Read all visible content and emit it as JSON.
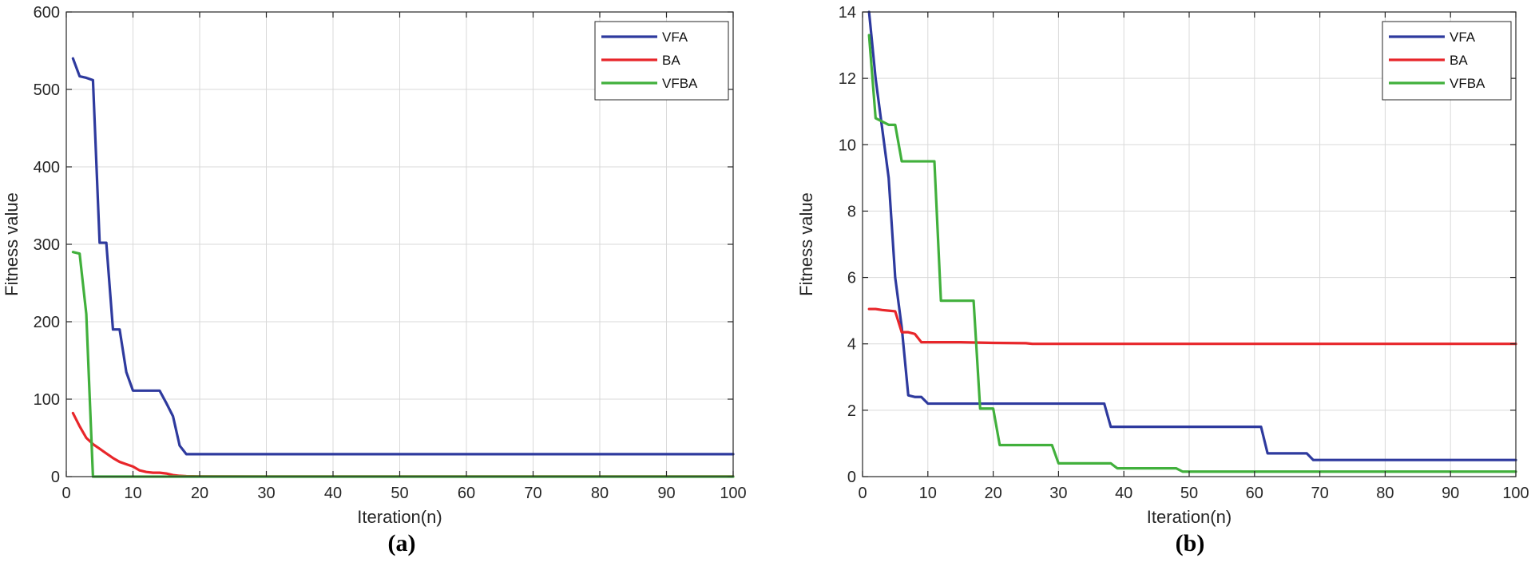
{
  "chart_data": [
    {
      "type": "line",
      "id": "a",
      "caption": "(a)",
      "xlabel": "Iteration(n)",
      "ylabel": "Fitness value",
      "xlim": [
        0,
        100
      ],
      "ylim": [
        0,
        600
      ],
      "xticks": [
        0,
        10,
        20,
        30,
        40,
        50,
        60,
        70,
        80,
        90,
        100
      ],
      "yticks": [
        0,
        100,
        200,
        300,
        400,
        500,
        600
      ],
      "grid": true,
      "legend": "top-right",
      "series": [
        {
          "name": "VFA",
          "color": "#2e3a9e",
          "points": [
            [
              1,
              540
            ],
            [
              2,
              517
            ],
            [
              3,
              515
            ],
            [
              4,
              512
            ],
            [
              5,
              302
            ],
            [
              6,
              302
            ],
            [
              7,
              190
            ],
            [
              8,
              190
            ],
            [
              9,
              135
            ],
            [
              10,
              111
            ],
            [
              11,
              111
            ],
            [
              12,
              111
            ],
            [
              13,
              111
            ],
            [
              14,
              111
            ],
            [
              15,
              95
            ],
            [
              16,
              78
            ],
            [
              17,
              40
            ],
            [
              18,
              29
            ],
            [
              20,
              29
            ],
            [
              30,
              29
            ],
            [
              40,
              29
            ],
            [
              50,
              29
            ],
            [
              60,
              29
            ],
            [
              70,
              29
            ],
            [
              80,
              29
            ],
            [
              90,
              29
            ],
            [
              100,
              29
            ]
          ]
        },
        {
          "name": "BA",
          "color": "#e8262a",
          "points": [
            [
              1,
              82
            ],
            [
              2,
              65
            ],
            [
              3,
              50
            ],
            [
              4,
              42
            ],
            [
              5,
              36
            ],
            [
              6,
              30
            ],
            [
              7,
              24
            ],
            [
              8,
              19
            ],
            [
              9,
              16
            ],
            [
              10,
              13
            ],
            [
              11,
              8
            ],
            [
              12,
              6
            ],
            [
              13,
              5
            ],
            [
              14,
              5
            ],
            [
              15,
              4
            ],
            [
              16,
              2
            ],
            [
              17,
              1
            ],
            [
              18,
              0.5
            ],
            [
              20,
              0.3
            ],
            [
              30,
              0.2
            ],
            [
              50,
              0.1
            ],
            [
              100,
              0.1
            ]
          ]
        },
        {
          "name": "VFBA",
          "color": "#41b03c",
          "points": [
            [
              1,
              290
            ],
            [
              2,
              288
            ],
            [
              3,
              210
            ],
            [
              4,
              0
            ],
            [
              100,
              0
            ]
          ]
        }
      ]
    },
    {
      "type": "line",
      "id": "b",
      "caption": "(b)",
      "xlabel": "Iteration(n)",
      "ylabel": "Fitness value",
      "xlim": [
        0,
        100
      ],
      "ylim": [
        0,
        14
      ],
      "xticks": [
        0,
        10,
        20,
        30,
        40,
        50,
        60,
        70,
        80,
        90,
        100
      ],
      "yticks": [
        0,
        2,
        4,
        6,
        8,
        10,
        12,
        14
      ],
      "grid": true,
      "legend": "top-right",
      "series": [
        {
          "name": "VFA",
          "color": "#2e3a9e",
          "points": [
            [
              1,
              14
            ],
            [
              2,
              12
            ],
            [
              3,
              10.5
            ],
            [
              4,
              9
            ],
            [
              5,
              6
            ],
            [
              6,
              4.5
            ],
            [
              7,
              2.45
            ],
            [
              8,
              2.4
            ],
            [
              9,
              2.4
            ],
            [
              10,
              2.2
            ],
            [
              20,
              2.2
            ],
            [
              30,
              2.2
            ],
            [
              37,
              2.2
            ],
            [
              38,
              1.5
            ],
            [
              40,
              1.5
            ],
            [
              50,
              1.5
            ],
            [
              60,
              1.5
            ],
            [
              61,
              1.5
            ],
            [
              62,
              0.7
            ],
            [
              68,
              0.7
            ],
            [
              69,
              0.5
            ],
            [
              80,
              0.5
            ],
            [
              90,
              0.5
            ],
            [
              100,
              0.5
            ]
          ]
        },
        {
          "name": "BA",
          "color": "#e8262a",
          "points": [
            [
              1,
              5.05
            ],
            [
              2,
              5.05
            ],
            [
              3,
              5.02
            ],
            [
              4,
              5.0
            ],
            [
              5,
              4.98
            ],
            [
              6,
              4.35
            ],
            [
              7,
              4.35
            ],
            [
              8,
              4.3
            ],
            [
              9,
              4.05
            ],
            [
              10,
              4.05
            ],
            [
              15,
              4.05
            ],
            [
              20,
              4.03
            ],
            [
              25,
              4.02
            ],
            [
              26,
              4.0
            ],
            [
              30,
              4.0
            ],
            [
              50,
              4.0
            ],
            [
              70,
              4.0
            ],
            [
              100,
              4.0
            ]
          ]
        },
        {
          "name": "VFBA",
          "color": "#41b03c",
          "points": [
            [
              1,
              13.3
            ],
            [
              2,
              10.8
            ],
            [
              3,
              10.7
            ],
            [
              4,
              10.6
            ],
            [
              5,
              10.6
            ],
            [
              6,
              9.5
            ],
            [
              10,
              9.5
            ],
            [
              11,
              9.5
            ],
            [
              12,
              5.3
            ],
            [
              16,
              5.3
            ],
            [
              17,
              5.3
            ],
            [
              18,
              2.05
            ],
            [
              19,
              2.05
            ],
            [
              20,
              2.05
            ],
            [
              21,
              0.95
            ],
            [
              28,
              0.95
            ],
            [
              29,
              0.95
            ],
            [
              30,
              0.4
            ],
            [
              38,
              0.4
            ],
            [
              39,
              0.25
            ],
            [
              47,
              0.25
            ],
            [
              48,
              0.25
            ],
            [
              49,
              0.15
            ],
            [
              60,
              0.15
            ],
            [
              80,
              0.15
            ],
            [
              100,
              0.15
            ]
          ]
        }
      ]
    }
  ]
}
